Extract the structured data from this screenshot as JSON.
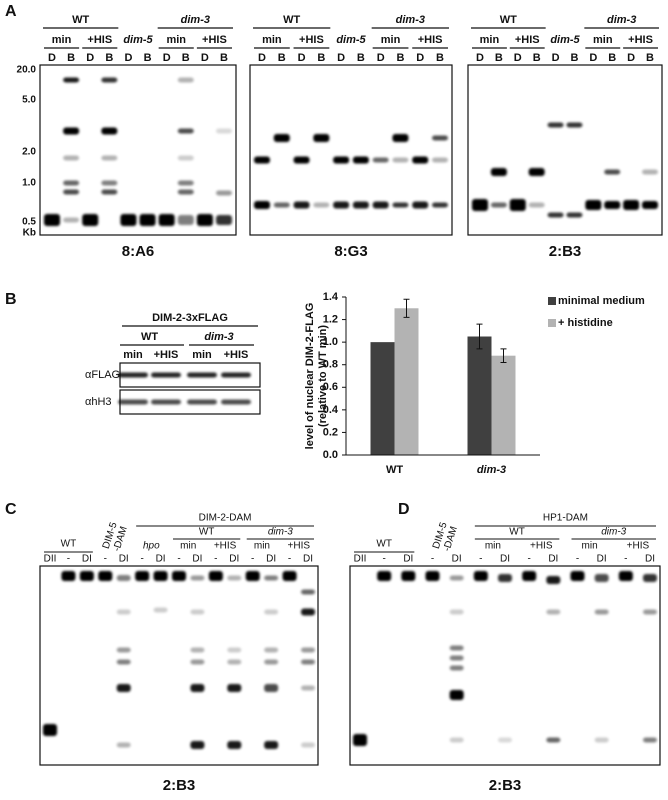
{
  "panels": {
    "A": {
      "letter": "A",
      "markers": [
        "20.0",
        "5.0",
        "2.0",
        "1.0",
        "0.5"
      ],
      "unit": "Kb",
      "blots": [
        {
          "groups": [
            "WT",
            "dim-3"
          ],
          "subgroups": [
            "min",
            "+HIS",
            "dim-5",
            "min",
            "+HIS"
          ],
          "lanes": [
            "D",
            "B",
            "D",
            "B",
            "D",
            "B",
            "D",
            "B",
            "D",
            "B"
          ],
          "caption": "8:A6"
        },
        {
          "groups": [
            "WT",
            "dim-3"
          ],
          "subgroups": [
            "min",
            "+HIS",
            "dim-5",
            "min",
            "+HIS"
          ],
          "lanes": [
            "D",
            "B",
            "D",
            "B",
            "D",
            "B",
            "D",
            "B",
            "D",
            "B"
          ],
          "caption": "8:G3"
        },
        {
          "groups": [
            "WT",
            "dim-3"
          ],
          "subgroups": [
            "min",
            "+HIS",
            "dim-5",
            "min",
            "+HIS"
          ],
          "lanes": [
            "D",
            "B",
            "D",
            "B",
            "D",
            "B",
            "D",
            "B",
            "D",
            "B"
          ],
          "caption": "2:B3"
        }
      ]
    },
    "B": {
      "letter": "B",
      "header": "DIM-2-3xFLAG",
      "groups": [
        "WT",
        "dim-3"
      ],
      "conditions": [
        "min",
        "+HIS",
        "min",
        "+HIS"
      ],
      "rows": [
        "αFLAG",
        "αhH3"
      ]
    },
    "C": {
      "letter": "C",
      "top": "DIM-2-DAM",
      "wt": "WT",
      "ref": [
        "DIM-5",
        "-DAM"
      ],
      "solo": [
        "hpo"
      ],
      "groups": [
        "WT",
        "dim-3"
      ],
      "subgroups": [
        "min",
        "+HIS",
        "min",
        "+HIS"
      ],
      "lanes": [
        "DII",
        "-",
        "DI",
        "-",
        "DI",
        "-",
        "DI",
        "-",
        "DI",
        "-",
        "DI",
        "-",
        "DI",
        "-",
        "DI"
      ],
      "caption": "2:B3"
    },
    "D": {
      "letter": "D",
      "top": "HP1-DAM",
      "wt": "WT",
      "ref": [
        "DIM-5",
        "-DAM"
      ],
      "groups": [
        "WT",
        "dim-3"
      ],
      "subgroups": [
        "min",
        "+HIS",
        "min",
        "+HIS"
      ],
      "lanes": [
        "DII",
        "-",
        "DI",
        "-",
        "DI",
        "-",
        "DI",
        "-",
        "DI",
        "-",
        "DI",
        "-",
        "DI"
      ],
      "caption": "2:B3"
    }
  },
  "chart_data": {
    "type": "bar",
    "ylabel": [
      "level of nuclear DIM-2-FLAG",
      "(relative to WT min)"
    ],
    "categories": [
      "WT",
      "dim-3"
    ],
    "series": [
      {
        "name": "minimal medium",
        "color": "#404040",
        "values": [
          1.0,
          1.05
        ],
        "errors": [
          null,
          0.11
        ]
      },
      {
        "name": "+ histidine",
        "color": "#b3b3b3",
        "values": [
          1.3,
          0.88
        ],
        "errors": [
          0.08,
          0.06
        ]
      }
    ],
    "ylim": [
      0,
      1.4
    ],
    "yticks": [
      {
        "value": 0,
        "label": "0.0"
      },
      {
        "value": 0.2,
        "label": "0.2"
      },
      {
        "value": 0.4,
        "label": "0.4"
      },
      {
        "value": 0.6,
        "label": "0.6"
      },
      {
        "value": 0.8,
        "label": "0.8"
      },
      {
        "value": 1,
        "label": "1.0"
      },
      {
        "value": 1.2,
        "label": "1.2"
      },
      {
        "value": 1.4,
        "label": "1.4"
      }
    ],
    "legend": "top-right",
    "grid": false
  }
}
